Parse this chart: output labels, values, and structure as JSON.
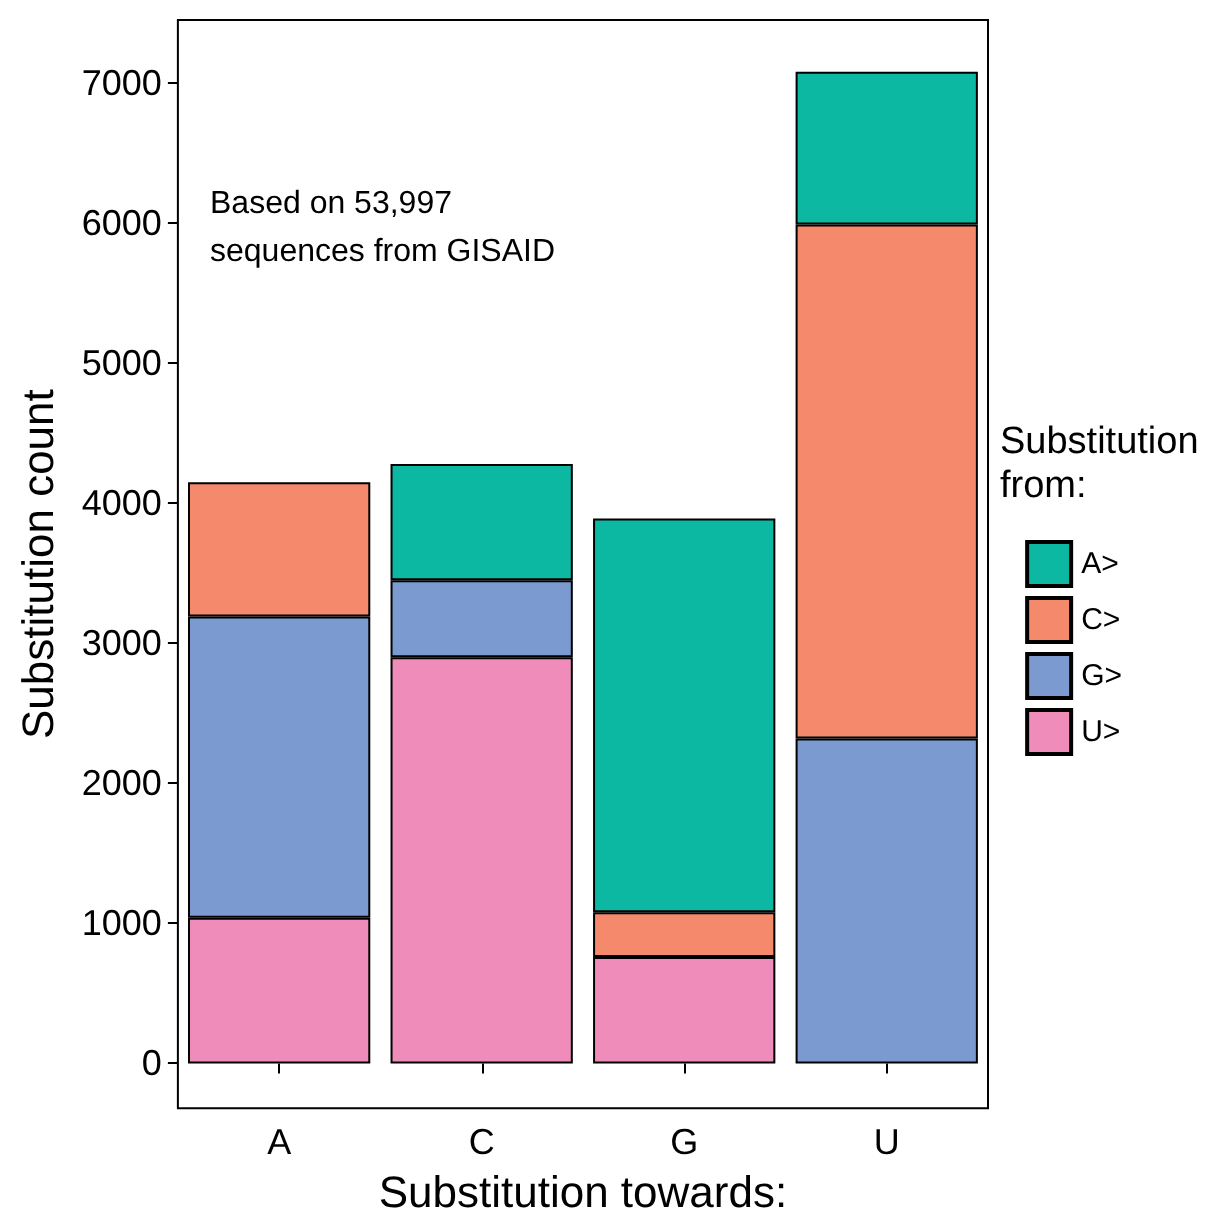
{
  "chart_data": {
    "type": "bar",
    "stacked": true,
    "xlabel": "Substitution towards:",
    "ylabel": "Substitution count",
    "legend_title": "Substitution from:",
    "categories": [
      "A",
      "C",
      "G",
      "U"
    ],
    "series": [
      {
        "name": "U>",
        "color": "#f08cba",
        "values": [
          1040,
          2900,
          760,
          null
        ]
      },
      {
        "name": "G>",
        "color": "#7b9acf",
        "values": [
          2150,
          550,
          null,
          2320
        ]
      },
      {
        "name": "C>",
        "color": "#f4896b",
        "values": [
          960,
          null,
          320,
          3670
        ]
      },
      {
        "name": "A>",
        "color": "#0cb8a2",
        "values": [
          null,
          830,
          2810,
          1090
        ]
      }
    ],
    "ylim": [
      -320,
      7450
    ],
    "yticks": [
      0,
      1000,
      2000,
      3000,
      4000,
      5000,
      6000,
      7000
    ],
    "grid": false,
    "legend": "right",
    "annotations": [
      "Based on 53,997\nsequences from GISAID"
    ]
  }
}
